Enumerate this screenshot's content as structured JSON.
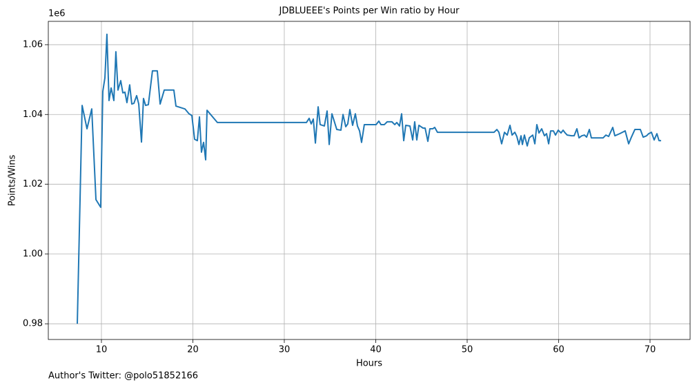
{
  "chart_data": {
    "type": "line",
    "title": "JDBLUEEE's Points per Win ratio by Hour",
    "xlabel": "Hours",
    "ylabel": "Points/Wins",
    "y_offset_label": "1e6",
    "footnote": "Author's Twitter: @polo51852166",
    "grid": true,
    "xlim": [
      4.19,
      74.38
    ],
    "ylim": [
      0.9755,
      1.0667
    ],
    "xticks": [
      10,
      20,
      30,
      40,
      50,
      60,
      70
    ],
    "yticks": [
      0.98,
      {
        "value": 1,
        "label": "1.00"
      },
      1.02,
      1.04,
      1.06
    ],
    "series": [
      {
        "color": "#1f77b4",
        "x": [
          7.36,
          7.89,
          8.42,
          8.94,
          9.4,
          9.92,
          10.15,
          10.38,
          10.6,
          10.83,
          11.06,
          11.36,
          11.58,
          11.81,
          12.11,
          12.34,
          12.57,
          12.79,
          13.09,
          13.32,
          13.55,
          13.85,
          14.08,
          14.38,
          14.6,
          14.83,
          15.13,
          15.58,
          16.11,
          16.42,
          16.87,
          17.92,
          18.15,
          19.13,
          19.58,
          19.89,
          20.19,
          20.49,
          20.72,
          20.94,
          21.17,
          21.4,
          21.55,
          22.68,
          32.42,
          32.72,
          32.94,
          33.17,
          33.4,
          33.7,
          33.92,
          34.38,
          34.68,
          34.91,
          35.21,
          35.74,
          36.19,
          36.42,
          36.72,
          36.94,
          37.17,
          37.47,
          37.77,
          38.0,
          38.23,
          38.45,
          38.75,
          40.04,
          40.34,
          40.57,
          40.94,
          41.25,
          41.77,
          42.08,
          42.3,
          42.6,
          42.83,
          43.06,
          43.28,
          43.74,
          44.04,
          44.26,
          44.49,
          44.72,
          45.17,
          45.4,
          45.7,
          45.92,
          46.23,
          46.45,
          46.75,
          52.94,
          53.25,
          53.47,
          53.77,
          54.08,
          54.38,
          54.68,
          54.91,
          55.21,
          55.43,
          55.66,
          55.89,
          56.04,
          56.26,
          56.57,
          56.79,
          57.17,
          57.4,
          57.62,
          57.85,
          58.15,
          58.45,
          58.68,
          58.91,
          59.13,
          59.43,
          59.66,
          59.96,
          60.26,
          60.49,
          60.72,
          60.94,
          61.4,
          61.7,
          62.0,
          62.23,
          62.53,
          62.83,
          63.06,
          63.36,
          63.58,
          64.87,
          65.17,
          65.47,
          65.92,
          66.15,
          66.68,
          67.28,
          67.66,
          67.96,
          68.34,
          68.94,
          69.25,
          69.62,
          69.85,
          70.15,
          70.45,
          70.75,
          70.98,
          71.21
        ],
        "values": [
          0.98,
          1.0426,
          1.0359,
          1.0416,
          1.0156,
          1.0134,
          1.0466,
          1.0505,
          1.063,
          1.044,
          1.0476,
          1.044,
          1.058,
          1.047,
          1.0497,
          1.0462,
          1.0464,
          1.0434,
          1.0485,
          1.043,
          1.0432,
          1.0454,
          1.043,
          1.0321,
          1.0446,
          1.0426,
          1.0428,
          1.0525,
          1.0525,
          1.043,
          1.047,
          1.047,
          1.0424,
          1.0416,
          1.0402,
          1.0397,
          1.0329,
          1.0325,
          1.0393,
          1.0292,
          1.032,
          1.027,
          1.0412,
          1.0377,
          1.0377,
          1.0389,
          1.0373,
          1.0387,
          1.0318,
          1.0422,
          1.0371,
          1.0367,
          1.041,
          1.0314,
          1.0402,
          1.0357,
          1.0355,
          1.04,
          1.0365,
          1.0373,
          1.0414,
          1.0369,
          1.0402,
          1.0367,
          1.0353,
          1.032,
          1.0371,
          1.0371,
          1.0381,
          1.0371,
          1.0371,
          1.0379,
          1.0379,
          1.0371,
          1.0377,
          1.0367,
          1.0402,
          1.0325,
          1.0369,
          1.0367,
          1.0327,
          1.0379,
          1.0327,
          1.0369,
          1.0361,
          1.0361,
          1.0323,
          1.0359,
          1.0359,
          1.0363,
          1.0349,
          1.0349,
          1.0357,
          1.0349,
          1.0316,
          1.0349,
          1.0341,
          1.0369,
          1.0341,
          1.0349,
          1.0337,
          1.0314,
          1.0339,
          1.0314,
          1.0341,
          1.031,
          1.0333,
          1.0341,
          1.0316,
          1.0371,
          1.0347,
          1.0359,
          1.0339,
          1.0345,
          1.0316,
          1.0353,
          1.0353,
          1.0341,
          1.0355,
          1.0347,
          1.0355,
          1.0347,
          1.0341,
          1.0339,
          1.0339,
          1.0359,
          1.0333,
          1.0339,
          1.0341,
          1.0335,
          1.0357,
          1.0333,
          1.0333,
          1.0341,
          1.0337,
          1.0363,
          1.0339,
          1.0345,
          1.0353,
          1.0316,
          1.0335,
          1.0357,
          1.0357,
          1.0335,
          1.0339,
          1.0345,
          1.0349,
          1.0327,
          1.0345,
          1.0325,
          1.0325
        ]
      }
    ]
  }
}
